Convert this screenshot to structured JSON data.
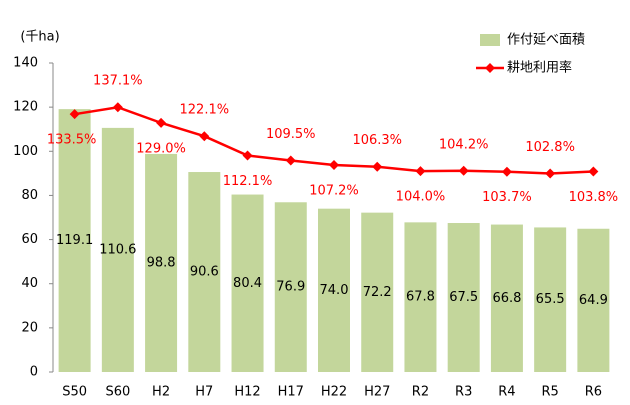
{
  "chart_data": {
    "type": "bar_line",
    "y_axis_label": "(千ha)",
    "categories": [
      "S50",
      "S60",
      "H2",
      "H7",
      "H12",
      "H17",
      "H22",
      "H27",
      "R2",
      "R3",
      "R4",
      "R5",
      "R6"
    ],
    "series": [
      {
        "name": "作付延べ面積",
        "type": "bar",
        "color": "#c3d69b",
        "values": [
          119.1,
          110.6,
          98.8,
          90.6,
          80.4,
          76.9,
          74.0,
          72.2,
          67.8,
          67.5,
          66.8,
          65.5,
          64.9
        ],
        "value_labels": [
          "119.1",
          "110.6",
          "98.8",
          "90.6",
          "80.4",
          "76.9",
          "74.0",
          "72.2",
          "67.8",
          "67.5",
          "66.8",
          "65.5",
          "64.9"
        ]
      },
      {
        "name": "耕地利用率",
        "type": "line",
        "axis": "y2",
        "color": "#ff0000",
        "values": [
          133.5,
          137.1,
          129.0,
          122.1,
          112.1,
          109.5,
          107.2,
          106.3,
          104.0,
          104.2,
          103.7,
          102.8,
          103.8
        ],
        "value_labels": [
          "133.5%",
          "137.1%",
          "129.0%",
          "122.1%",
          "112.1%",
          "109.5%",
          "107.2%",
          "106.3%",
          "104.0%",
          "104.2%",
          "103.7%",
          "102.8%",
          "103.8%"
        ]
      }
    ],
    "ylim": [
      0,
      140
    ],
    "yticks": [
      0,
      20,
      40,
      60,
      80,
      100,
      120,
      140
    ],
    "y2lim": [
      0,
      160
    ],
    "grid": false,
    "legend": "top-right"
  }
}
